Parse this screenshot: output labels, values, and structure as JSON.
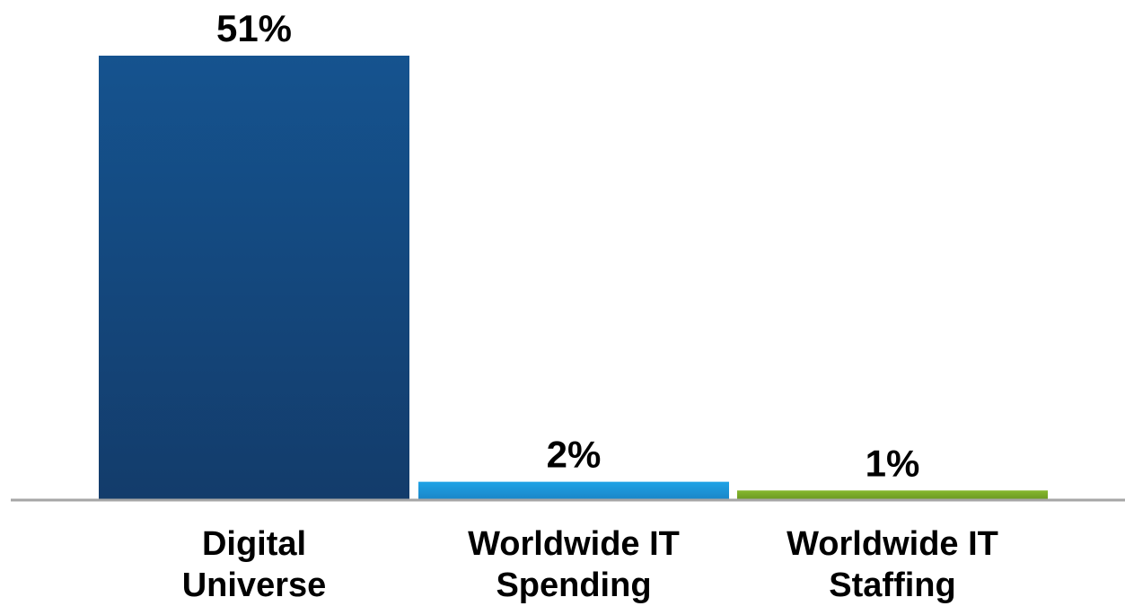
{
  "chart_data": {
    "type": "bar",
    "categories": [
      [
        "Digital",
        "Universe"
      ],
      [
        "Worldwide IT",
        "Spending"
      ],
      [
        "Worldwide IT",
        "Staffing"
      ]
    ],
    "values": [
      51,
      2,
      1
    ],
    "data_labels": [
      "51%",
      "2%",
      "1%"
    ],
    "colors": [
      "#154a85",
      "#1d8fd6",
      "#7aa928"
    ],
    "title": "",
    "xlabel": "",
    "ylabel": "",
    "ylim": [
      0,
      51
    ],
    "grid": false,
    "legend": "none",
    "baseline_color": "#a6a6a6"
  }
}
